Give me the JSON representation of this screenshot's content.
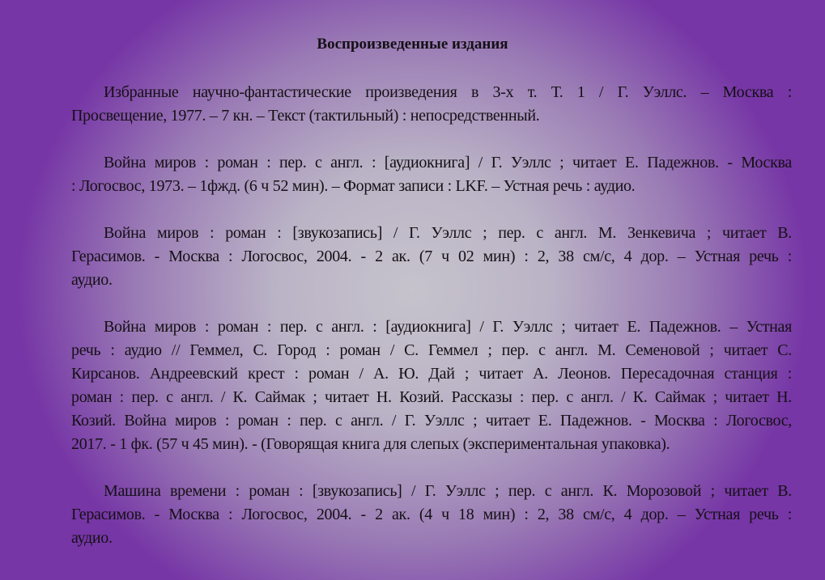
{
  "title": "Воспроизведенные издания",
  "paragraphs": [
    {
      "lines": [
        "Избранные научно-фантастические произведения в 3-х т. Т. 1 / Г. Уэллс. – Москва :",
        "Просвещение, 1977. – 7 кн. – Текст (тактильный) : непосредственный."
      ]
    },
    {
      "lines": [
        "Война миров : роман : пер. с англ. : [аудиокнига] / Г. Уэллс ; читает Е. Падежнов. - Москва",
        ": Логосвос, 1973. – 1фжд. (6 ч 52 мин). – Формат записи : LKF. – Устная речь : аудио."
      ]
    },
    {
      "lines": [
        "Война миров : роман : [звукозапись] / Г. Уэллс ; пер. с англ. М. Зенкевича ; читает В.",
        "Герасимов. - Москва : Логосвос, 2004. - 2 ак. (7 ч 02 мин) : 2, 38 см/с, 4 дор. – Устная речь :",
        "аудио."
      ]
    },
    {
      "lines": [
        "Война миров : роман : пер. с англ. : [аудиокнига] / Г. Уэллс ; читает Е. Падежнов. – Устная",
        "речь : аудио // Геммел, С. Город : роман / С. Геммел ; пер. с англ. М. Семеновой ; читает С.",
        "Кирсанов. Андреевский крест : роман / А. Ю. Дай ; читает А. Леонов. Пересадочная станция :",
        "роман : пер. с англ. / К. Саймак ; читает Н. Козий. Рассказы : пер. с англ. / К. Саймак ; читает Н.",
        "Козий. Война миров : роман : пер. с англ. / Г. Уэллс ; читает Е. Падежнов. - Москва : Логосвос,",
        "2017. - 1 фк. (57 ч 45 мин). - (Говорящая книга для слепых (экспериментальная упаковка)."
      ]
    },
    {
      "lines": [
        "Машина времени : роман : [звукозапись] / Г. Уэллс ; пер. с англ. К. Морозовой ; читает В.",
        "Герасимов. - Москва : Логосвос, 2004. - 2 ак. (4 ч 18 мин) : 2, 38 см/с, 4 дор. – Устная речь :",
        "аудио."
      ]
    }
  ]
}
